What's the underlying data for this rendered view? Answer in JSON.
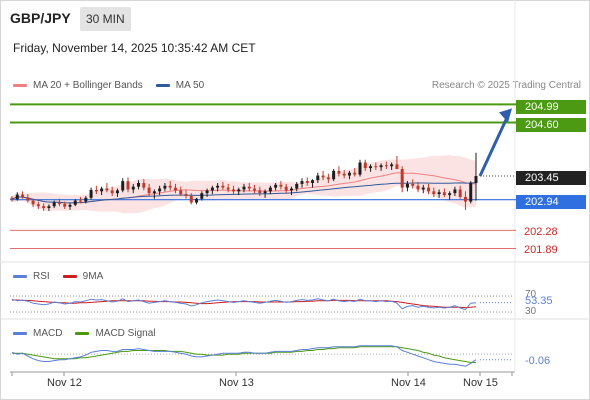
{
  "header": {
    "symbol": "GBP/JPY",
    "interval": "30 MIN",
    "datetime": "Friday, November 14, 2025 10:35:42 AM CET"
  },
  "legend_main": [
    {
      "label": "MA 20 + Bollinger Bands",
      "color": "#f08080"
    },
    {
      "label": "MA 50",
      "color": "#2f5b9c"
    }
  ],
  "copyright": "Research © 2025 Trading Central",
  "levels": {
    "target2": {
      "value": "204.99",
      "color": "#4c9a14"
    },
    "target1": {
      "value": "204.60",
      "color": "#4c9a14"
    },
    "last": {
      "value": "203.45",
      "color": "#222222"
    },
    "pivot": {
      "value": "202.94",
      "color": "#2f6fe0"
    },
    "support1": {
      "value": "202.28",
      "color": "#e07070"
    },
    "support2": {
      "value": "201.89",
      "color": "#e07070"
    }
  },
  "legend_rsi": [
    {
      "label": "RSI",
      "color": "#5b7fd8"
    },
    {
      "label": "9MA",
      "color": "#cc1f1f"
    }
  ],
  "rsi": {
    "value": "53.35",
    "level_high": "70",
    "level_low": "30"
  },
  "legend_macd": [
    {
      "label": "MACD",
      "color": "#5b7fd8"
    },
    {
      "label": "MACD Signal",
      "color": "#4c9a14"
    }
  ],
  "macd": {
    "value": "-0.06"
  },
  "x_axis": {
    "labels": [
      "Nov 12",
      "Nov 13",
      "Nov 14",
      "Nov 15"
    ]
  },
  "chart_data": [
    {
      "type": "candlestick",
      "title": "GBP/JPY 30 MIN",
      "y_range": [
        201.6,
        205.3
      ],
      "candles_ohlc": [
        [
          202.98,
          203.02,
          202.9,
          202.95
        ],
        [
          202.95,
          203.1,
          202.92,
          203.05
        ],
        [
          203.05,
          203.12,
          202.96,
          202.99
        ],
        [
          202.99,
          203.06,
          202.88,
          202.92
        ],
        [
          202.92,
          202.96,
          202.78,
          202.84
        ],
        [
          202.84,
          202.9,
          202.74,
          202.8
        ],
        [
          202.8,
          202.86,
          202.7,
          202.76
        ],
        [
          202.76,
          202.84,
          202.7,
          202.8
        ],
        [
          202.8,
          202.92,
          202.76,
          202.88
        ],
        [
          202.88,
          202.96,
          202.8,
          202.85
        ],
        [
          202.85,
          202.9,
          202.74,
          202.79
        ],
        [
          202.79,
          202.86,
          202.72,
          202.83
        ],
        [
          202.83,
          202.95,
          202.8,
          202.92
        ],
        [
          202.92,
          203.0,
          202.86,
          202.9
        ],
        [
          202.9,
          203.02,
          202.86,
          202.98
        ],
        [
          202.98,
          203.2,
          202.94,
          203.15
        ],
        [
          203.15,
          203.24,
          203.06,
          203.12
        ],
        [
          203.12,
          203.22,
          203.04,
          203.18
        ],
        [
          203.18,
          203.3,
          203.1,
          203.14
        ],
        [
          203.14,
          203.22,
          203.02,
          203.08
        ],
        [
          203.08,
          203.18,
          203.0,
          203.14
        ],
        [
          203.14,
          203.4,
          203.1,
          203.34
        ],
        [
          203.34,
          203.42,
          203.1,
          203.16
        ],
        [
          203.16,
          203.28,
          203.08,
          203.22
        ],
        [
          203.22,
          203.36,
          203.16,
          203.3
        ],
        [
          203.3,
          203.38,
          203.14,
          203.2
        ],
        [
          203.2,
          203.28,
          203.02,
          203.08
        ],
        [
          203.08,
          203.16,
          202.96,
          203.12
        ],
        [
          203.12,
          203.24,
          203.04,
          203.18
        ],
        [
          203.18,
          203.3,
          203.12,
          203.24
        ],
        [
          203.24,
          203.34,
          203.14,
          203.2
        ],
        [
          203.2,
          203.28,
          203.08,
          203.14
        ],
        [
          203.14,
          203.22,
          203.02,
          203.06
        ],
        [
          203.06,
          203.14,
          202.96,
          203.02
        ],
        [
          203.02,
          203.08,
          202.84,
          202.88
        ],
        [
          202.88,
          202.98,
          202.84,
          202.96
        ],
        [
          202.96,
          203.12,
          202.92,
          203.08
        ],
        [
          203.08,
          203.18,
          203.0,
          203.14
        ],
        [
          203.14,
          203.24,
          203.06,
          203.2
        ],
        [
          203.2,
          203.3,
          203.12,
          203.24
        ],
        [
          203.24,
          203.32,
          203.16,
          203.2
        ],
        [
          203.2,
          203.28,
          203.1,
          203.16
        ],
        [
          203.16,
          203.24,
          203.06,
          203.12
        ],
        [
          203.12,
          203.2,
          203.04,
          203.16
        ],
        [
          203.16,
          203.28,
          203.1,
          203.22
        ],
        [
          203.22,
          203.3,
          203.12,
          203.18
        ],
        [
          203.18,
          203.26,
          203.08,
          203.14
        ],
        [
          203.14,
          203.22,
          203.02,
          203.08
        ],
        [
          203.08,
          203.16,
          202.98,
          203.12
        ],
        [
          203.12,
          203.24,
          203.06,
          203.2
        ],
        [
          203.2,
          203.3,
          203.14,
          203.26
        ],
        [
          203.26,
          203.34,
          203.16,
          203.22
        ],
        [
          203.22,
          203.28,
          203.08,
          203.14
        ],
        [
          203.14,
          203.22,
          203.04,
          203.18
        ],
        [
          203.18,
          203.32,
          203.12,
          203.28
        ],
        [
          203.28,
          203.4,
          203.2,
          203.34
        ],
        [
          203.34,
          203.42,
          203.24,
          203.3
        ],
        [
          203.3,
          203.38,
          203.2,
          203.36
        ],
        [
          203.36,
          203.52,
          203.3,
          203.46
        ],
        [
          203.46,
          203.56,
          203.36,
          203.42
        ],
        [
          203.42,
          203.5,
          203.3,
          203.38
        ],
        [
          203.38,
          203.6,
          203.34,
          203.56
        ],
        [
          203.56,
          203.66,
          203.44,
          203.5
        ],
        [
          203.5,
          203.58,
          203.4,
          203.46
        ],
        [
          203.46,
          203.56,
          203.38,
          203.52
        ],
        [
          203.52,
          203.62,
          203.44,
          203.48
        ],
        [
          203.48,
          203.8,
          203.44,
          203.74
        ],
        [
          203.74,
          203.8,
          203.56,
          203.62
        ],
        [
          203.62,
          203.7,
          203.54,
          203.66
        ],
        [
          203.66,
          203.74,
          203.58,
          203.64
        ],
        [
          203.64,
          203.72,
          203.56,
          203.68
        ],
        [
          203.68,
          203.76,
          203.6,
          203.66
        ],
        [
          203.66,
          203.74,
          203.58,
          203.7
        ],
        [
          203.7,
          203.88,
          203.62,
          203.6
        ],
        [
          203.6,
          203.66,
          203.1,
          203.2
        ],
        [
          203.2,
          203.34,
          203.12,
          203.28
        ],
        [
          203.28,
          203.38,
          203.18,
          203.24
        ],
        [
          203.24,
          203.32,
          203.1,
          203.16
        ],
        [
          203.16,
          203.26,
          203.08,
          203.2
        ],
        [
          203.2,
          203.28,
          203.06,
          203.12
        ],
        [
          203.12,
          203.2,
          203.0,
          203.06
        ],
        [
          203.06,
          203.16,
          202.98,
          203.1
        ],
        [
          203.1,
          203.18,
          203.0,
          203.04
        ],
        [
          203.04,
          203.12,
          202.94,
          203.08
        ],
        [
          203.08,
          203.22,
          203.02,
          203.16
        ],
        [
          203.16,
          203.24,
          202.96,
          203.0
        ],
        [
          203.0,
          203.12,
          202.72,
          202.9
        ],
        [
          202.9,
          203.34,
          202.86,
          203.3
        ],
        [
          203.3,
          203.95,
          202.92,
          203.45
        ]
      ]
    },
    {
      "type": "line",
      "title": "RSI",
      "series": [
        {
          "name": "RSI",
          "values": [
            62,
            58,
            60,
            57,
            52,
            50,
            48,
            50,
            55,
            53,
            50,
            52,
            56,
            55,
            58,
            62,
            60,
            61,
            58,
            55,
            57,
            63,
            56,
            58,
            60,
            56,
            52,
            54,
            56,
            58,
            56,
            54,
            52,
            50,
            45,
            48,
            53,
            56,
            58,
            60,
            58,
            56,
            54,
            56,
            58,
            56,
            54,
            52,
            54,
            57,
            59,
            57,
            54,
            56,
            59,
            61,
            59,
            60,
            63,
            60,
            58,
            62,
            58,
            56,
            58,
            56,
            62,
            58,
            58,
            56,
            58,
            56,
            57,
            52,
            38,
            44,
            46,
            42,
            44,
            42,
            40,
            42,
            40,
            42,
            46,
            40,
            36,
            52,
            53.35
          ]
        },
        {
          "name": "9MA",
          "values": [
            60,
            60,
            59,
            59,
            58,
            57,
            56,
            55,
            54,
            53,
            53,
            52,
            52,
            53,
            53,
            54,
            55,
            56,
            57,
            58,
            58,
            58,
            58,
            58,
            58,
            58,
            57,
            57,
            56,
            56,
            56,
            55,
            55,
            54,
            53,
            52,
            51,
            51,
            52,
            53,
            54,
            55,
            56,
            56,
            56,
            56,
            56,
            55,
            55,
            55,
            55,
            55,
            55,
            55,
            56,
            56,
            57,
            57,
            58,
            58,
            58,
            59,
            59,
            59,
            59,
            58,
            58,
            58,
            58,
            58,
            58,
            58,
            57,
            56,
            54,
            52,
            50,
            48,
            46,
            45,
            44,
            43,
            42,
            42,
            42,
            42,
            41,
            42,
            43
          ]
        }
      ],
      "levels": [
        70,
        30
      ]
    },
    {
      "type": "line",
      "title": "MACD",
      "series": [
        {
          "name": "MACD",
          "values": [
            0.02,
            0.0,
            0.01,
            -0.02,
            -0.05,
            -0.07,
            -0.08,
            -0.08,
            -0.07,
            -0.06,
            -0.06,
            -0.05,
            -0.04,
            -0.03,
            -0.01,
            0.02,
            0.03,
            0.04,
            0.04,
            0.03,
            0.03,
            0.05,
            0.05,
            0.05,
            0.06,
            0.05,
            0.04,
            0.03,
            0.03,
            0.03,
            0.03,
            0.02,
            0.01,
            0.0,
            -0.02,
            -0.03,
            -0.03,
            -0.02,
            -0.01,
            0.0,
            0.01,
            0.01,
            0.01,
            0.01,
            0.02,
            0.02,
            0.01,
            0.01,
            0.01,
            0.02,
            0.03,
            0.03,
            0.03,
            0.03,
            0.04,
            0.05,
            0.05,
            0.06,
            0.07,
            0.07,
            0.07,
            0.08,
            0.08,
            0.08,
            0.08,
            0.08,
            0.09,
            0.09,
            0.09,
            0.09,
            0.09,
            0.09,
            0.09,
            0.08,
            0.04,
            0.02,
            0.0,
            -0.02,
            -0.04,
            -0.06,
            -0.08,
            -0.09,
            -0.1,
            -0.11,
            -0.11,
            -0.12,
            -0.13,
            -0.1,
            -0.06
          ]
        },
        {
          "name": "MACD Signal",
          "values": [
            0.01,
            0.01,
            0.01,
            0.0,
            -0.01,
            -0.02,
            -0.03,
            -0.04,
            -0.05,
            -0.05,
            -0.05,
            -0.05,
            -0.05,
            -0.04,
            -0.04,
            -0.03,
            -0.02,
            -0.01,
            0.0,
            0.01,
            0.02,
            0.03,
            0.03,
            0.04,
            0.04,
            0.04,
            0.04,
            0.04,
            0.04,
            0.04,
            0.03,
            0.03,
            0.03,
            0.02,
            0.01,
            0.0,
            0.0,
            -0.01,
            -0.01,
            -0.01,
            -0.01,
            0.0,
            0.0,
            0.0,
            0.01,
            0.01,
            0.01,
            0.01,
            0.01,
            0.01,
            0.02,
            0.02,
            0.02,
            0.02,
            0.03,
            0.03,
            0.04,
            0.04,
            0.05,
            0.05,
            0.06,
            0.06,
            0.07,
            0.07,
            0.07,
            0.07,
            0.08,
            0.08,
            0.08,
            0.08,
            0.08,
            0.08,
            0.08,
            0.08,
            0.07,
            0.06,
            0.05,
            0.04,
            0.02,
            0.01,
            -0.01,
            -0.02,
            -0.04,
            -0.05,
            -0.06,
            -0.07,
            -0.08,
            -0.09,
            -0.09
          ]
        }
      ]
    }
  ]
}
